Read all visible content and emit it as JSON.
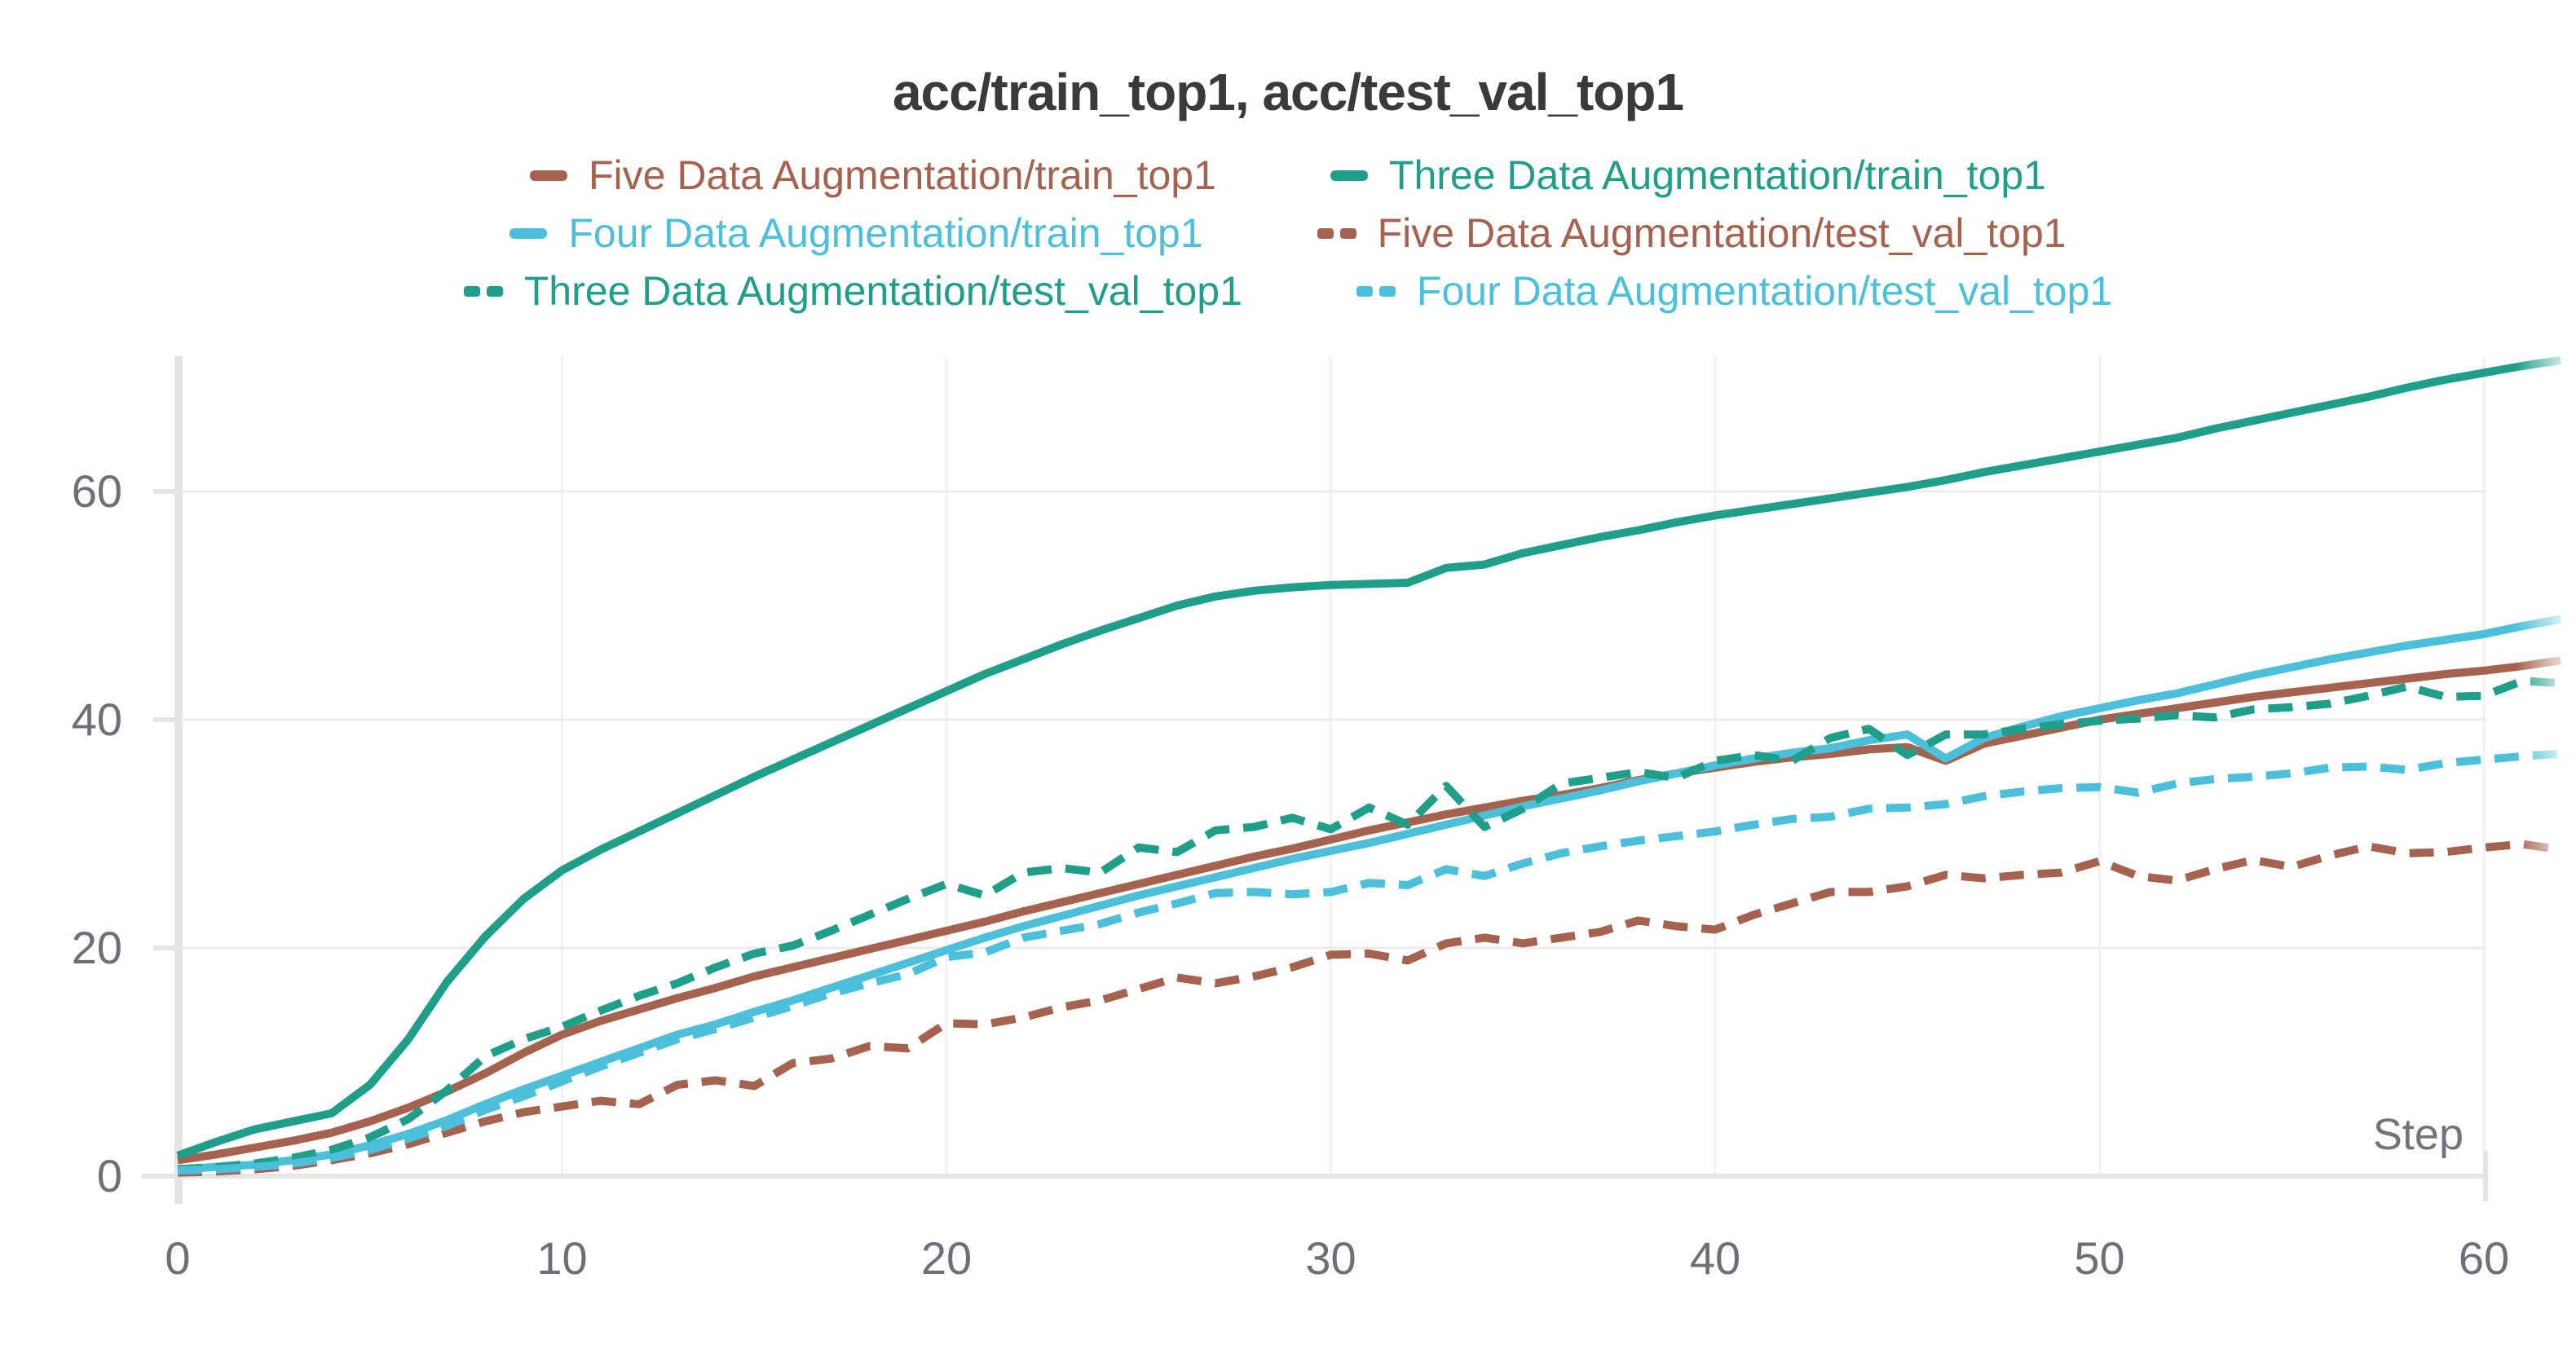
{
  "title": "acc/train_top1, acc/test_val_top1",
  "axis": {
    "x_label": "Step",
    "x_tick_labels": [
      "0",
      "10",
      "20",
      "30",
      "40",
      "50",
      "60"
    ],
    "y_tick_labels": [
      "0",
      "20",
      "40",
      "60"
    ]
  },
  "colors": {
    "brown": "#a5624e",
    "teal": "#1f9e89",
    "blue": "#4cc0da",
    "grid_h": "#ececec",
    "grid_v": "#f1f1f1",
    "axis": "#e4e4e4",
    "tick_text": "#6e6e78",
    "step_text": "#73737d",
    "title_text": "#3a3a3a"
  },
  "chart_data": {
    "type": "line",
    "title": "acc/train_top1, acc/test_val_top1",
    "xlabel": "Step",
    "ylabel": "",
    "x_ticks": [
      0,
      10,
      20,
      30,
      40,
      50,
      60
    ],
    "y_ticks": [
      0,
      20,
      40,
      60
    ],
    "xlim": [
      0,
      62.4
    ],
    "ylim": [
      0,
      72
    ],
    "grid": true,
    "legend_position": "top",
    "x": {
      "start": 0,
      "end": 62,
      "step": 1
    },
    "legend_rows": [
      [
        0,
        2
      ],
      [
        1,
        3
      ],
      [
        4,
        5
      ]
    ],
    "series": [
      {
        "name": "Five Data Augmentation/train_top1",
        "color": "#a5624e",
        "style": "solid",
        "values": [
          1.4,
          1.9,
          2.5,
          3.1,
          3.8,
          4.8,
          6.0,
          7.4,
          9.0,
          10.8,
          12.4,
          13.6,
          14.6,
          15.6,
          16.5,
          17.5,
          18.3,
          19.1,
          19.9,
          20.7,
          21.5,
          22.3,
          23.2,
          24.0,
          24.8,
          25.6,
          26.4,
          27.2,
          28.0,
          28.7,
          29.5,
          30.3,
          31.0,
          31.7,
          32.3,
          32.9,
          33.4,
          34.0,
          34.7,
          35.3,
          35.8,
          36.3,
          36.7,
          37.0,
          37.4,
          37.6,
          36.4,
          37.9,
          38.6,
          39.3,
          40.0,
          40.5,
          41.0,
          41.5,
          42.0,
          42.4,
          42.8,
          43.2,
          43.6,
          44.0,
          44.3,
          44.7,
          45.2
        ]
      },
      {
        "name": "Four Data Augmentation/train_top1",
        "color": "#4cc0da",
        "style": "solid",
        "values": [
          0.6,
          0.8,
          1.0,
          1.4,
          1.9,
          2.7,
          3.7,
          4.9,
          6.3,
          7.6,
          8.8,
          10.0,
          11.2,
          12.4,
          13.3,
          14.4,
          15.4,
          16.5,
          17.6,
          18.7,
          19.8,
          20.9,
          21.9,
          22.8,
          23.7,
          24.6,
          25.4,
          26.2,
          27.0,
          27.8,
          28.5,
          29.2,
          30.0,
          30.8,
          31.6,
          32.4,
          33.1,
          33.8,
          34.6,
          35.3,
          36.0,
          36.6,
          37.1,
          37.5,
          38.2,
          38.7,
          36.6,
          38.4,
          39.4,
          40.3,
          41.0,
          41.7,
          42.3,
          43.1,
          43.9,
          44.6,
          45.3,
          45.9,
          46.5,
          47.0,
          47.5,
          48.2,
          48.8
        ]
      },
      {
        "name": "Three Data Augmentation/train_top1",
        "color": "#1f9e89",
        "style": "solid",
        "values": [
          1.8,
          3.0,
          4.1,
          4.8,
          5.5,
          8.0,
          12.0,
          17.0,
          21.0,
          24.3,
          26.8,
          28.6,
          30.2,
          31.8,
          33.4,
          35.0,
          36.5,
          38.0,
          39.5,
          41.0,
          42.5,
          44.0,
          45.3,
          46.6,
          47.8,
          48.9,
          50.0,
          50.8,
          51.3,
          51.6,
          51.8,
          51.9,
          52.0,
          53.3,
          53.6,
          54.6,
          55.3,
          56.0,
          56.6,
          57.3,
          57.9,
          58.4,
          58.9,
          59.4,
          59.9,
          60.4,
          61.0,
          61.7,
          62.3,
          62.9,
          63.5,
          64.1,
          64.7,
          65.5,
          66.2,
          66.9,
          67.6,
          68.3,
          69.1,
          69.8,
          70.4,
          71.0,
          71.5
        ]
      },
      {
        "name": "Five Data Augmentation/test_val_top1",
        "color": "#a5624e",
        "style": "dashed",
        "values": [
          0.3,
          0.4,
          0.6,
          0.9,
          1.4,
          2.0,
          2.8,
          3.8,
          4.8,
          5.6,
          6.1,
          6.6,
          6.3,
          8.0,
          8.4,
          7.9,
          9.9,
          10.3,
          11.4,
          11.2,
          13.4,
          13.3,
          13.9,
          14.8,
          15.4,
          16.4,
          17.4,
          16.9,
          17.5,
          18.3,
          19.4,
          19.5,
          18.9,
          20.4,
          20.9,
          20.4,
          20.9,
          21.4,
          22.4,
          21.9,
          21.6,
          22.9,
          23.9,
          24.9,
          24.9,
          25.4,
          26.4,
          26.1,
          26.4,
          26.6,
          27.6,
          26.3,
          25.9,
          26.9,
          27.7,
          27.1,
          28.1,
          28.9,
          28.3,
          28.4,
          28.8,
          29.1,
          28.6
        ]
      },
      {
        "name": "Three Data Augmentation/test_val_top1",
        "color": "#1f9e89",
        "style": "dashed",
        "values": [
          0.6,
          0.8,
          1.1,
          1.6,
          2.3,
          3.4,
          5.0,
          7.5,
          10.5,
          12.0,
          13.1,
          14.5,
          15.8,
          16.9,
          18.3,
          19.5,
          20.2,
          21.5,
          22.9,
          24.3,
          25.6,
          24.6,
          26.6,
          27.0,
          26.6,
          28.8,
          28.4,
          30.3,
          30.6,
          31.4,
          30.4,
          32.3,
          30.8,
          34.2,
          30.6,
          32.2,
          34.4,
          34.9,
          35.4,
          34.9,
          36.4,
          36.9,
          36.4,
          38.4,
          39.2,
          36.9,
          38.7,
          38.7,
          39.2,
          39.6,
          39.9,
          40.1,
          40.4,
          40.2,
          40.9,
          41.1,
          41.4,
          42.1,
          42.9,
          42.0,
          42.1,
          43.4,
          43.2
        ]
      },
      {
        "name": "Four Data Augmentation/test_val_top1",
        "color": "#4cc0da",
        "style": "dashed",
        "values": [
          0.5,
          0.6,
          0.8,
          1.1,
          1.6,
          2.3,
          3.3,
          4.4,
          5.8,
          7.0,
          8.3,
          9.6,
          10.8,
          12.0,
          12.9,
          13.9,
          14.9,
          16.0,
          16.9,
          17.7,
          19.2,
          19.6,
          20.9,
          21.5,
          22.1,
          23.1,
          23.9,
          24.8,
          24.9,
          24.7,
          24.9,
          25.7,
          25.5,
          26.9,
          26.3,
          27.4,
          28.3,
          28.9,
          29.4,
          29.8,
          30.2,
          30.8,
          31.3,
          31.5,
          32.2,
          32.3,
          32.6,
          33.3,
          33.7,
          34.0,
          34.1,
          33.6,
          34.4,
          34.8,
          35.0,
          35.3,
          35.8,
          35.9,
          35.6,
          36.2,
          36.5,
          36.8,
          37.0
        ]
      }
    ]
  }
}
